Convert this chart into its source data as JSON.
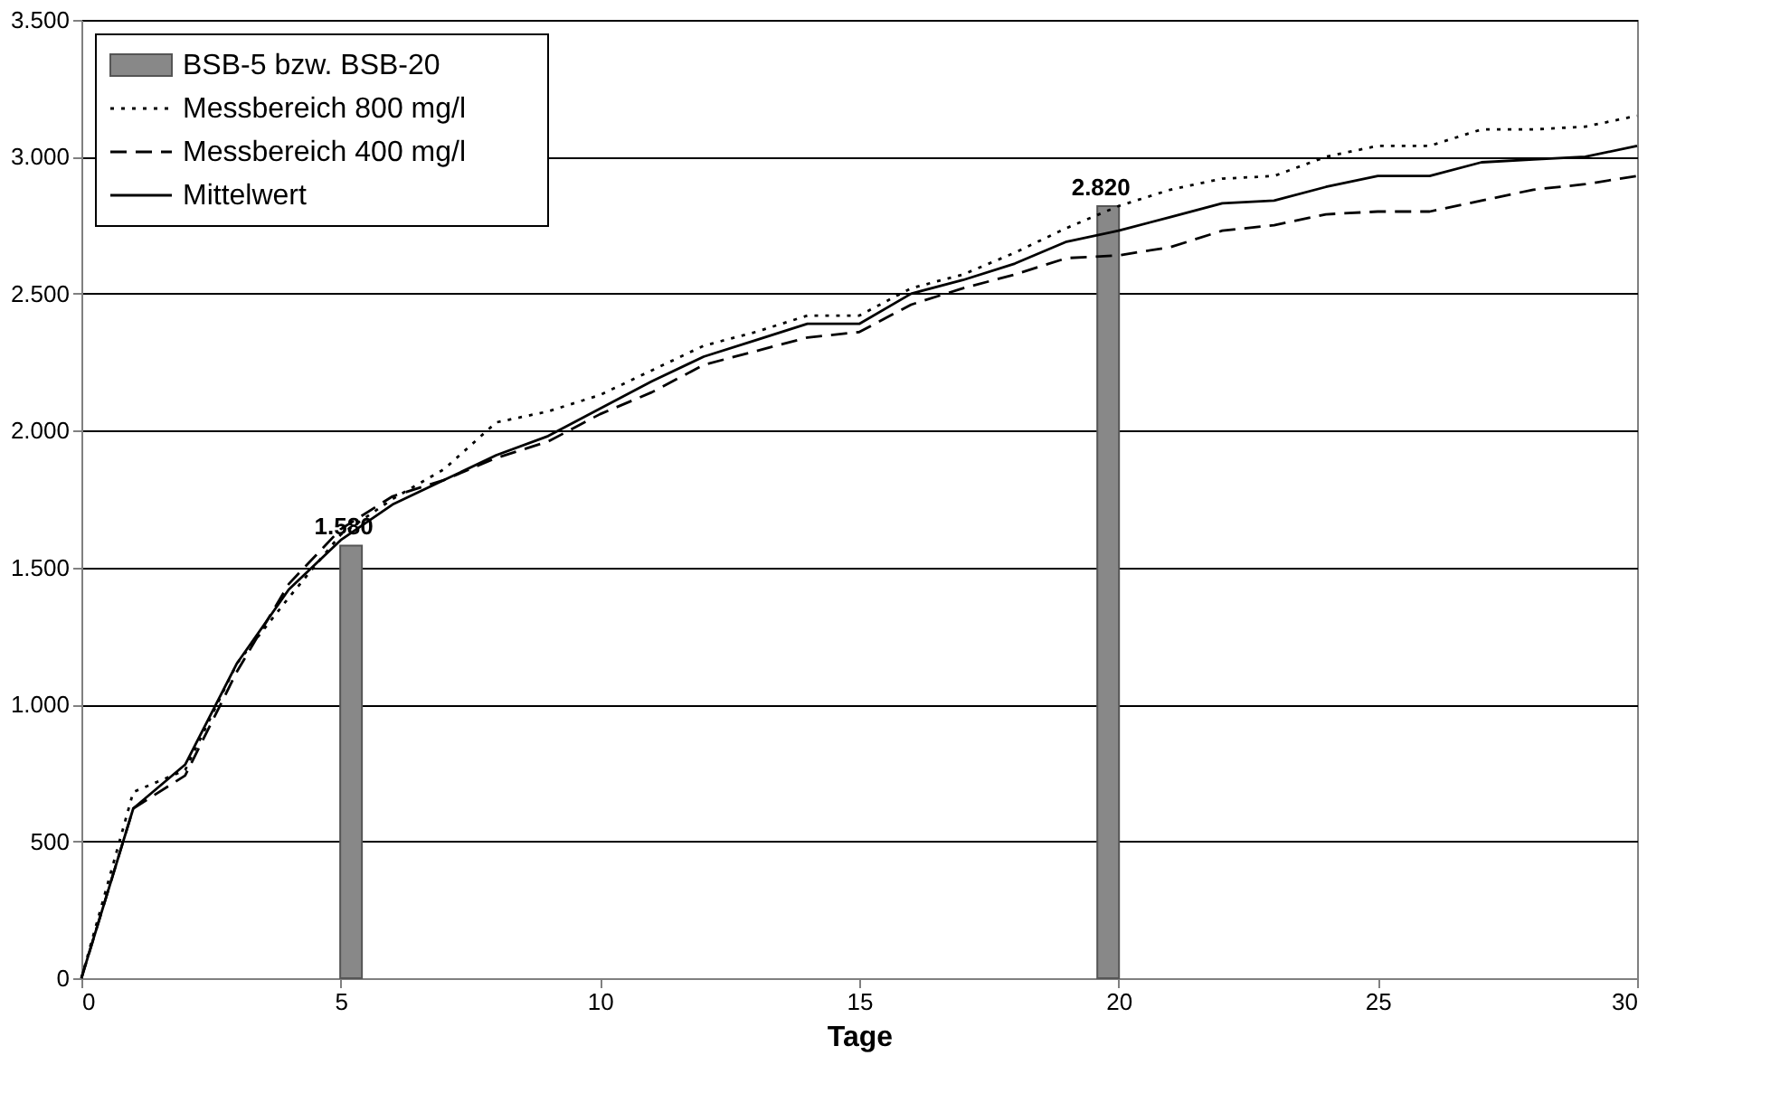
{
  "chart_data": {
    "type": "line",
    "xlabel": "Tage",
    "x": [
      0,
      1,
      2,
      3,
      4,
      5,
      6,
      7,
      8,
      9,
      10,
      11,
      12,
      13,
      14,
      15,
      16,
      17,
      18,
      19,
      20,
      21,
      22,
      23,
      24,
      25,
      26,
      27,
      28,
      29,
      30
    ],
    "series": [
      {
        "name": "BSB-5 bzw. BSB-20",
        "type": "bar",
        "color": "#888888",
        "x": [
          5.2,
          19.8
        ],
        "values": [
          1580,
          2820
        ],
        "value_labels": [
          "1.580",
          "2.820"
        ]
      },
      {
        "name": "Messbereich 800 mg/l",
        "color": "#000000",
        "line_style": "dotted",
        "values": [
          0,
          680,
          760,
          1150,
          1390,
          1620,
          1750,
          1860,
          2030,
          2070,
          2130,
          2220,
          2310,
          2360,
          2420,
          2420,
          2520,
          2570,
          2650,
          2740,
          2820,
          2880,
          2920,
          2930,
          3000,
          3040,
          3040,
          3100,
          3100,
          3110,
          3150
        ]
      },
      {
        "name": "Messbereich 400 mg/l",
        "color": "#000000",
        "line_style": "dashed",
        "values": [
          0,
          620,
          740,
          1120,
          1440,
          1640,
          1760,
          1820,
          1900,
          1960,
          2060,
          2140,
          2240,
          2290,
          2340,
          2360,
          2460,
          2520,
          2570,
          2630,
          2640,
          2670,
          2730,
          2750,
          2790,
          2800,
          2800,
          2840,
          2880,
          2900,
          2930
        ]
      },
      {
        "name": "Mittelwert",
        "color": "#000000",
        "line_style": "solid",
        "values": [
          0,
          620,
          780,
          1150,
          1420,
          1600,
          1730,
          1820,
          1910,
          1980,
          2080,
          2180,
          2270,
          2330,
          2390,
          2390,
          2500,
          2550,
          2610,
          2690,
          2730,
          2780,
          2830,
          2840,
          2890,
          2930,
          2930,
          2980,
          2990,
          3000,
          3040
        ]
      }
    ],
    "xlim": [
      0,
      30
    ],
    "xticks": [
      0,
      5,
      10,
      15,
      20,
      25,
      30
    ],
    "ylim": [
      0,
      3500
    ],
    "yticks": [
      0,
      500,
      {
        "value": 1000,
        "label": "1.000"
      },
      {
        "value": 1500,
        "label": "1.500"
      },
      {
        "value": 2000,
        "label": "2.000"
      },
      {
        "value": 2500,
        "label": "2.500"
      },
      {
        "value": 3000,
        "label": "3.000"
      },
      {
        "value": 3500,
        "label": "3.500"
      }
    ],
    "grid": "y",
    "legend": "top left"
  }
}
